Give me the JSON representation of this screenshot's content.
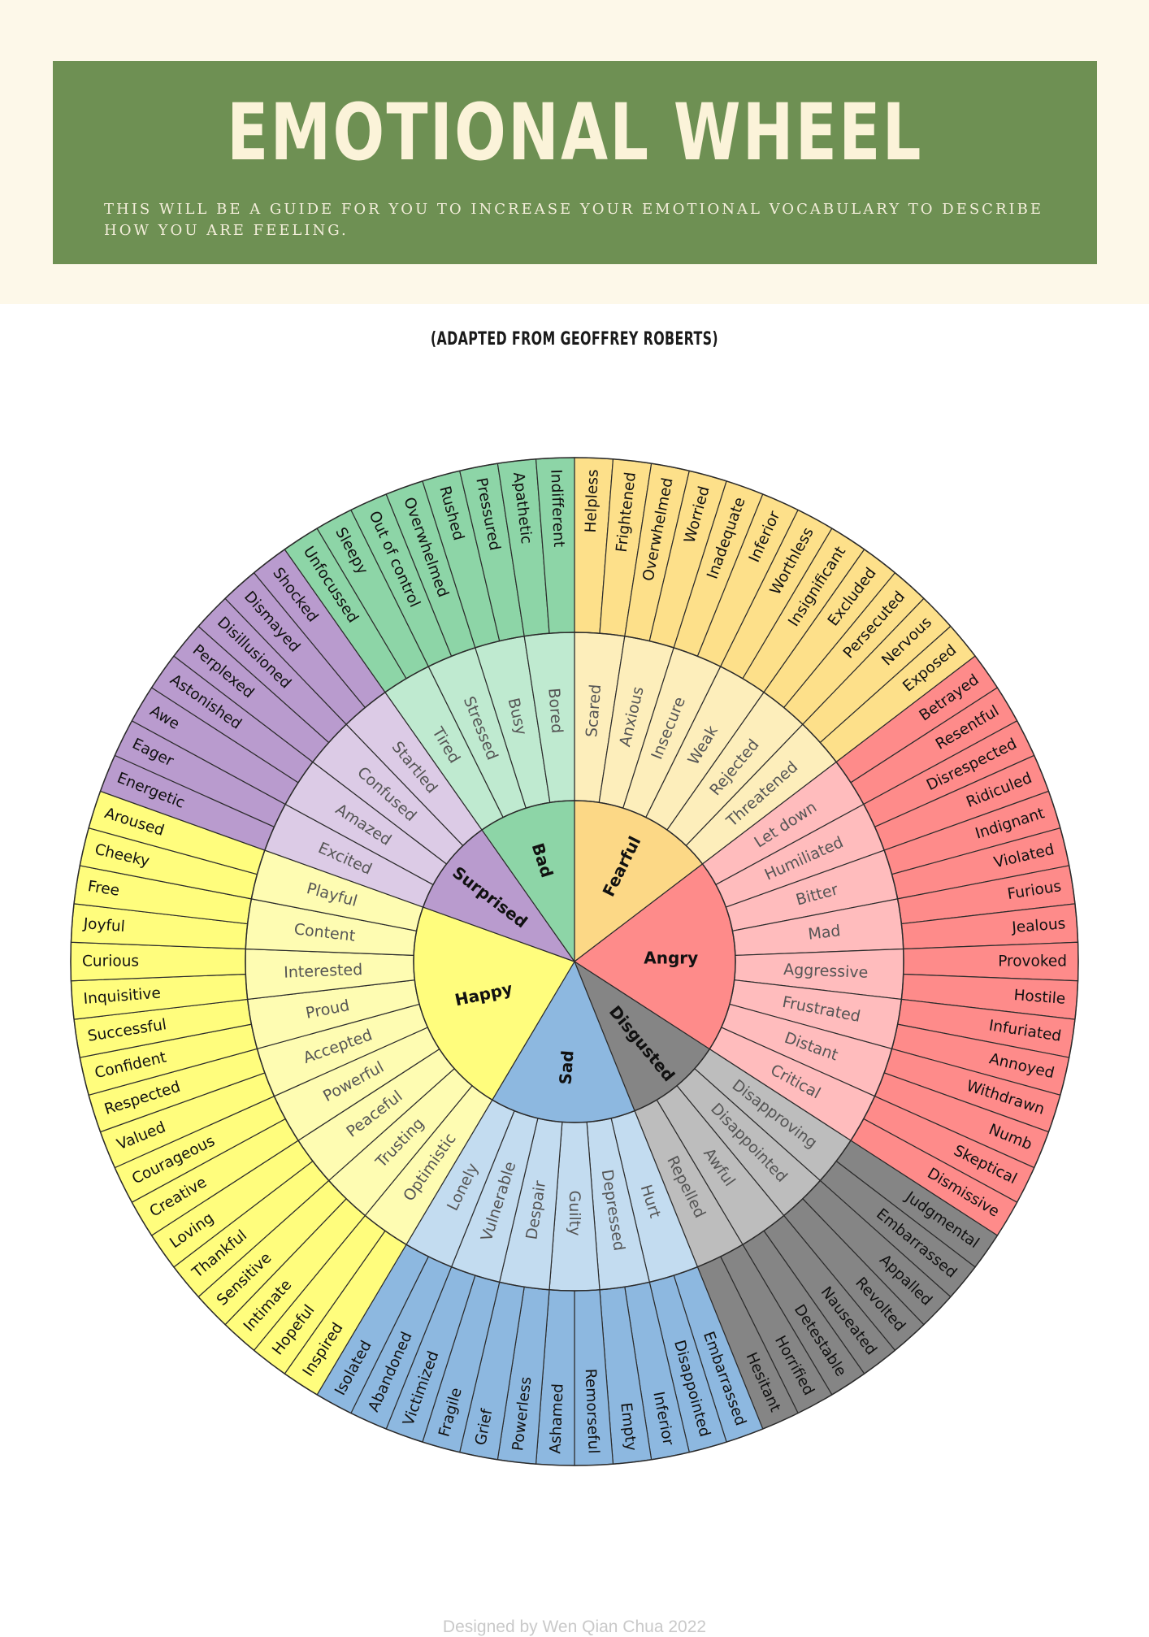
{
  "header": {
    "title": "EMOTIONAL WHEEL",
    "subtitle": "THIS WILL BE A GUIDE FOR YOU TO INCREASE YOUR EMOTIONAL VOCABULARY TO DESCRIBE HOW YOU ARE FEELING."
  },
  "credit": "(ADAPTED FROM GEOFFREY ROBERTS)",
  "footer": "Designed by Wen Qian Chua 2022",
  "colors": {
    "banner": "#6e9053",
    "fearful": [
      "#fcd886",
      "#fdeebb",
      "#fde08a"
    ],
    "angry": [
      "#fe8b8a",
      "#ffbcbd",
      "#fe8b8a"
    ],
    "disgusted": [
      "#858585",
      "#bdbdbd",
      "#858585"
    ],
    "sad": [
      "#8db8e0",
      "#c3dcf0",
      "#8db8e0"
    ],
    "happy": [
      "#fffd7d",
      "#fefcb2",
      "#fffd7d"
    ],
    "surprised": [
      "#b99bce",
      "#dccbe6",
      "#b99bce"
    ],
    "bad": [
      "#8dd5a7",
      "#bfead0",
      "#8dd5a7"
    ]
  },
  "wheel": [
    {
      "name": "Fearful",
      "children": [
        {
          "name": "Scared",
          "children": [
            "Helpless",
            "Frightened"
          ]
        },
        {
          "name": "Anxious",
          "children": [
            "Overwhelmed",
            "Worried"
          ]
        },
        {
          "name": "Insecure",
          "children": [
            "Inadequate",
            "Inferior"
          ]
        },
        {
          "name": "Weak",
          "children": [
            "Worthless",
            "Insignificant"
          ]
        },
        {
          "name": "Rejected",
          "children": [
            "Excluded",
            "Persecuted"
          ]
        },
        {
          "name": "Threatened",
          "children": [
            "Nervous",
            "Exposed"
          ]
        }
      ]
    },
    {
      "name": "Angry",
      "children": [
        {
          "name": "Let down",
          "children": [
            "Betrayed",
            "Resentful"
          ]
        },
        {
          "name": "Humiliated",
          "children": [
            "Disrespected",
            "Ridiculed"
          ]
        },
        {
          "name": "Bitter",
          "children": [
            "Indignant",
            "Violated"
          ]
        },
        {
          "name": "Mad",
          "children": [
            "Furious",
            "Jealous"
          ]
        },
        {
          "name": "Aggressive",
          "children": [
            "Provoked",
            "Hostile"
          ]
        },
        {
          "name": "Frustrated",
          "children": [
            "Infuriated",
            "Annoyed"
          ]
        },
        {
          "name": "Distant",
          "children": [
            "Withdrawn",
            "Numb"
          ]
        },
        {
          "name": "Critical",
          "children": [
            "Skeptical",
            "Dismissive"
          ]
        }
      ]
    },
    {
      "name": "Disgusted",
      "children": [
        {
          "name": "Disapproving",
          "children": [
            "Judgmental",
            "Embarrassed"
          ]
        },
        {
          "name": "Disappointed",
          "children": [
            "Appalled",
            "Revolted"
          ]
        },
        {
          "name": "Awful",
          "children": [
            "Nauseated",
            "Detestable"
          ]
        },
        {
          "name": "Repelled",
          "children": [
            "Horrified",
            "Hesitant"
          ]
        }
      ]
    },
    {
      "name": "Sad",
      "children": [
        {
          "name": "Hurt",
          "children": [
            "Embarrassed",
            "Disappointed"
          ]
        },
        {
          "name": "Depressed",
          "children": [
            "Inferior",
            "Empty"
          ]
        },
        {
          "name": "Guilty",
          "children": [
            "Remorseful",
            "Ashamed"
          ]
        },
        {
          "name": "Despair",
          "children": [
            "Powerless",
            "Grief"
          ]
        },
        {
          "name": "Vulnerable",
          "children": [
            "Fragile",
            "Victimized"
          ]
        },
        {
          "name": "Lonely",
          "children": [
            "Abandoned",
            "Isolated"
          ]
        }
      ]
    },
    {
      "name": "Happy",
      "children": [
        {
          "name": "Optimistic",
          "children": [
            "Inspired",
            "Hopeful"
          ]
        },
        {
          "name": "Trusting",
          "children": [
            "Intimate",
            "Sensitive"
          ]
        },
        {
          "name": "Peaceful",
          "children": [
            "Thankful",
            "Loving"
          ]
        },
        {
          "name": "Powerful",
          "children": [
            "Creative",
            "Courageous"
          ]
        },
        {
          "name": "Accepted",
          "children": [
            "Valued",
            "Respected"
          ]
        },
        {
          "name": "Proud",
          "children": [
            "Confident",
            "Successful"
          ]
        },
        {
          "name": "Interested",
          "children": [
            "Inquisitive",
            "Curious"
          ]
        },
        {
          "name": "Content",
          "children": [
            "Joyful",
            "Free"
          ]
        },
        {
          "name": "Playful",
          "children": [
            "Cheeky",
            "Aroused"
          ]
        }
      ]
    },
    {
      "name": "Surprised",
      "children": [
        {
          "name": "Excited",
          "children": [
            "Energetic",
            "Eager"
          ]
        },
        {
          "name": "Amazed",
          "children": [
            "Awe",
            "Astonished"
          ]
        },
        {
          "name": "Confused",
          "children": [
            "Perplexed",
            "Disillusioned"
          ]
        },
        {
          "name": "Startled",
          "children": [
            "Dismayed",
            "Shocked"
          ]
        }
      ]
    },
    {
      "name": "Bad",
      "children": [
        {
          "name": "Tired",
          "children": [
            "Unfocussed",
            "Sleepy"
          ]
        },
        {
          "name": "Stressed",
          "children": [
            "Out of control",
            "Overwhelmed"
          ]
        },
        {
          "name": "Busy",
          "children": [
            "Rushed",
            "Pressured"
          ]
        },
        {
          "name": "Bored",
          "children": [
            "Apathetic",
            "Indifferent"
          ]
        }
      ]
    }
  ]
}
